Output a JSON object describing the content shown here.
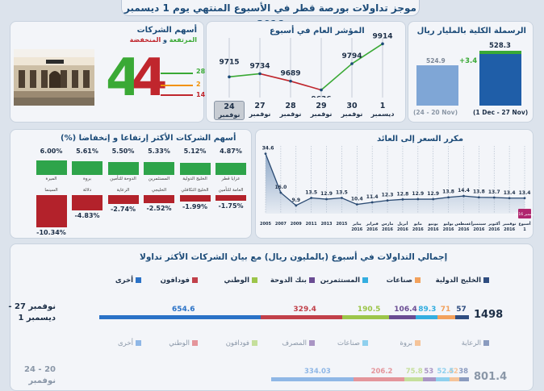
{
  "title": "موجز تداولات بورصة قطر في الأسبوع المنتهي يوم 1 ديسمبر 2016",
  "market_cap": {
    "title": "الرسملة الكلية بالمليار ريال",
    "prev_value": "524.9",
    "curr_value": "528.3",
    "change": "+3.4",
    "prev_label": "(24 - 20 Nov)",
    "curr_label": "(1 Dec - 27 Nov)",
    "prev_color": "#7fa6d6",
    "curr_color": "#1f5ea8",
    "change_color": "#3aa935"
  },
  "index": {
    "title": "المؤشر العام في أسبوع",
    "days": [
      {
        "day": "24",
        "month": "نوفمبر",
        "active": true
      },
      {
        "day": "27",
        "month": "نوفمبر"
      },
      {
        "day": "28",
        "month": "نوفمبر"
      },
      {
        "day": "29",
        "month": "نوفمبر"
      },
      {
        "day": "30",
        "month": "نوفمبر"
      },
      {
        "day": "1",
        "month": "ديسمبر"
      }
    ],
    "values": [
      "9715",
      "9734",
      "9689",
      "9636",
      "9794",
      "9914"
    ]
  },
  "stocks": {
    "title": "أسهم الشركات",
    "subtitle_up": "المرتفعة",
    "subtitle_and": " و ",
    "subtitle_down": "المنخفضة",
    "up_count": "28",
    "unchanged_count": "2",
    "down_count": "14",
    "left_digit": "4",
    "right_digit": "4",
    "up_color": "#3aa935",
    "down_color": "#c0262d",
    "unchanged_color": "#f29100"
  },
  "movers": {
    "title": "أسهم الشركات الأكثر إرتفاعا و إنخفاضا (%)",
    "gainers": [
      {
        "name": "عزايا قطر",
        "pct": "4.87%"
      },
      {
        "name": "الخليج الدولية",
        "pct": "5.12%"
      },
      {
        "name": "المستثمرين",
        "pct": "5.33%"
      },
      {
        "name": "الدوحة للتأمين",
        "pct": "5.50%"
      },
      {
        "name": "بروة",
        "pct": "5.61%"
      },
      {
        "name": "الميرة",
        "pct": "6.00%"
      }
    ],
    "losers": [
      {
        "name": "العامة للتأمين",
        "pct": "-1.75%"
      },
      {
        "name": "الخليج التكافلي",
        "pct": "-1.99%"
      },
      {
        "name": "الخليجي",
        "pct": "-2.52%"
      },
      {
        "name": "الرعاية",
        "pct": "-2.74%"
      },
      {
        "name": "دلالة",
        "pct": "-4.83%"
      },
      {
        "name": "السينما",
        "pct": "-10.34%"
      }
    ],
    "gain_color": "#2ea44a",
    "loss_color": "#b3222b"
  },
  "pe": {
    "title": "مكرر السعر إلى العائد",
    "points": [
      {
        "label": "2005",
        "value": "34.6"
      },
      {
        "label": "2007",
        "value": "16.0"
      },
      {
        "label": "2009",
        "value": "9.9"
      },
      {
        "label": "2011",
        "value": "13.5"
      },
      {
        "label": "2013",
        "value": "12.9"
      },
      {
        "label": "2015",
        "value": "13.5"
      },
      {
        "label": "يناير 2016",
        "value": "10.4"
      },
      {
        "label": "فبراير 2016",
        "value": "11.4"
      },
      {
        "label": "مارس 2016",
        "value": "12.3"
      },
      {
        "label": "أبريل 2016",
        "value": "12.8"
      },
      {
        "label": "مايو 2016",
        "value": "12.9"
      },
      {
        "label": "يونيو 2016",
        "value": "12.9"
      },
      {
        "label": "يوليو 2016",
        "value": "13.8"
      },
      {
        "label": "أغسطس 2016",
        "value": "14.4"
      },
      {
        "label": "سبتمبر 2016",
        "value": "13.8"
      },
      {
        "label": "أكتوبر 2016",
        "value": "13.7"
      },
      {
        "label": "نوفمبر 2016",
        "value": "13.4"
      },
      {
        "label": "أسبوع 1",
        "value": "13.4"
      }
    ],
    "highlight_label": "ديسمبر 2016"
  },
  "volume": {
    "title": "إجمالي التداولات في أسبوع (بالمليون ريال) مع بيان الشركات الأكثر تداولا",
    "row1": {
      "label_line1": "نوفمبر 27 -",
      "label_line2": "ديسمبر 1",
      "total": "1498",
      "legend": [
        {
          "name": "الخليج الدولية",
          "color": "#2f4d80"
        },
        {
          "name": "صناعات",
          "color": "#f2a15c"
        },
        {
          "name": "المستثمرين",
          "color": "#33aee0"
        },
        {
          "name": "بنك الدوحة",
          "color": "#6a4c93"
        },
        {
          "name": "الوطني",
          "color": "#9cc54a"
        },
        {
          "name": "فودافون",
          "color": "#c1404a"
        },
        {
          "name": "أخرى",
          "color": "#2a72c7"
        }
      ],
      "segments": [
        {
          "value": "57",
          "color": "#2f4d80"
        },
        {
          "value": "71",
          "color": "#f2a15c"
        },
        {
          "value": "89.3",
          "color": "#33aee0"
        },
        {
          "value": "106.4",
          "color": "#6a4c93"
        },
        {
          "value": "190.5",
          "color": "#9cc54a"
        },
        {
          "value": "329.4",
          "color": "#c1404a"
        },
        {
          "value": "654.6",
          "color": "#2a72c7"
        }
      ]
    },
    "row2": {
      "label_line1": "20 - 24",
      "label_line2": "نوفمبر",
      "total": "801.4",
      "legend": [
        {
          "name": "الرعاية",
          "color": "#8a9bbf"
        },
        {
          "name": "بروة",
          "color": "#f5c49a"
        },
        {
          "name": "صناعات",
          "color": "#8fd0ee"
        },
        {
          "name": "المصرف",
          "color": "#a995c4"
        },
        {
          "name": "فودافون",
          "color": "#c5df9c"
        },
        {
          "name": "الوطني",
          "color": "#e4959b"
        },
        {
          "name": "أخرى",
          "color": "#8fb7e6"
        }
      ],
      "segments": [
        {
          "value": "38",
          "color": "#8a9bbf"
        },
        {
          "value": "42",
          "color": "#f5c49a"
        },
        {
          "value": "52.5",
          "color": "#8fd0ee"
        },
        {
          "value": "53",
          "color": "#a995c4"
        },
        {
          "value": "75.8",
          "color": "#c5df9c"
        },
        {
          "value": "206.2",
          "color": "#e4959b"
        },
        {
          "value": "334.03",
          "color": "#8fb7e6"
        }
      ]
    }
  }
}
